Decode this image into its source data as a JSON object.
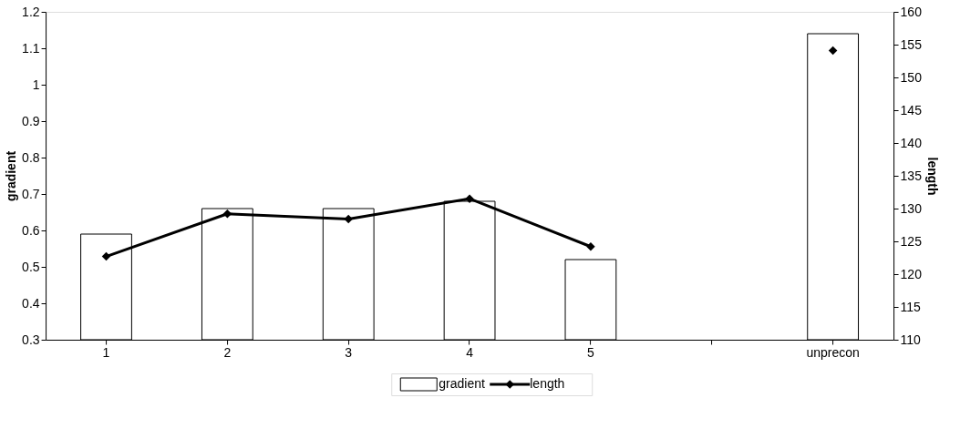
{
  "chart_data": {
    "type": "bar",
    "categories": [
      "1",
      "2",
      "3",
      "4",
      "5",
      null,
      "unprecon"
    ],
    "ylabel": "gradient",
    "y2label": "length",
    "series": [
      {
        "name": "gradient",
        "color": "#ffffff",
        "values": [
          0.59,
          0.66,
          0.66,
          0.68,
          0.52,
          null,
          1.14
        ]
      },
      {
        "name": "length",
        "type": "line",
        "axis": "y2",
        "color": "#000000",
        "values": [
          122.7,
          129.2,
          128.4,
          131.5,
          124.2,
          null,
          154.1
        ]
      }
    ],
    "ylim": [
      0.3,
      1.2
    ],
    "yticks": [
      0.3,
      0.4,
      0.5,
      0.6,
      0.7,
      0.8,
      0.9,
      1,
      1.1,
      1.2
    ],
    "y2lim": [
      110,
      160
    ],
    "y2ticks": [
      110,
      115,
      120,
      125,
      130,
      135,
      140,
      145,
      150,
      155,
      160
    ],
    "marker": "diamond",
    "grid": false,
    "legend": "bottom"
  }
}
